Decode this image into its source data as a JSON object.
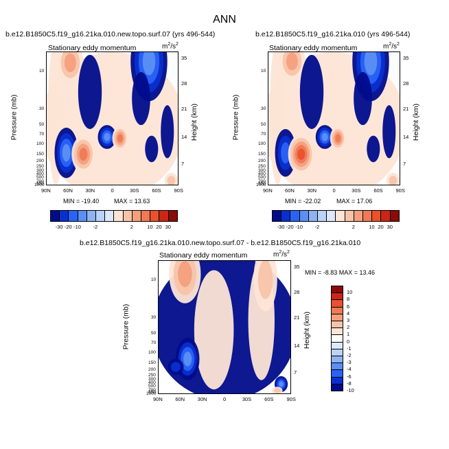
{
  "main_title": "ANN",
  "colors": {
    "negative": [
      "#000c8b",
      "#0a2fd0",
      "#2a62f5",
      "#5b8ff3",
      "#8fb3f2",
      "#bcd2f7",
      "#dde9fb"
    ],
    "positive": [
      "#fde5d6",
      "#f8c4a9",
      "#f4a07e",
      "#ef7a55",
      "#e8522d",
      "#cc2617",
      "#8b0a0a"
    ]
  },
  "colorbar_top": {
    "labels": [
      "-30",
      "-20",
      "-10",
      "-2",
      "2",
      "10",
      "20",
      "30"
    ]
  },
  "colorbar_diff": {
    "labels": [
      "10",
      "8",
      "6",
      "4",
      "3",
      "2",
      "1",
      "0",
      "-1",
      "-2",
      "-3",
      "-4",
      "-6",
      "-8",
      "-10"
    ]
  },
  "panels": {
    "left": {
      "title": "b.e12.B1850C5.f19_g16.21ka.010.new.topo.surf.07 (yrs 496-544)",
      "subtitle": "Stationary eddy momentum",
      "units_base": "m",
      "units_exp": "2",
      "units_den": "/s",
      "units_den_exp": "2",
      "ylabel": "Pressure (mb)",
      "rlabel": "Height (km)",
      "min_label": "MIN = -19.40",
      "max_label": "MAX = 13.63"
    },
    "right": {
      "title": "b.e12.B1850C5.f19_g16.21ka.010 (yrs 496-544)",
      "subtitle": "Stationary eddy momentum",
      "units_base": "m",
      "units_exp": "2",
      "units_den": "/s",
      "units_den_exp": "2",
      "ylabel": "Pressure (mb)",
      "rlabel": "Height (km)",
      "min_label": "MIN = -22.02",
      "max_label": "MAX = 17.06"
    },
    "diff": {
      "title": "b.e12.B1850C5.f19_g16.21ka.010.new.topo.surf.07 - b.e12.B1850C5.f19_g16.21ka.010",
      "subtitle": "Stationary eddy momentum",
      "units_base": "m",
      "units_exp": "2",
      "units_den": "/s",
      "units_den_exp": "2",
      "ylabel": "Pressure (mb)",
      "rlabel": "Height (km)",
      "minmax": "MIN = -8.83  MAX = 13.46"
    }
  },
  "chart_data": [
    {
      "type": "heatmap",
      "name": "left",
      "title": "b.e12.B1850C5.f19_g16.21ka.010.new.topo.surf.07 (yrs 496-544)",
      "subtitle": "Stationary eddy momentum",
      "xlabel": "",
      "ylabel": "Pressure (mb)",
      "y2label": "Height (km)",
      "x_ticks": [
        "90N",
        "60N",
        "30N",
        "0",
        "30S",
        "60S",
        "90S"
      ],
      "y_ticks": [
        "10",
        "30",
        "50",
        "70",
        "100",
        "150",
        "200",
        "250",
        "300",
        "400",
        "500",
        "700",
        "850",
        "1000"
      ],
      "y2_ticks": [
        "35",
        "28",
        "21",
        "14",
        "7"
      ],
      "contour_levels": [
        -30,
        -20,
        -10,
        -2,
        2,
        10,
        20,
        30
      ],
      "min": -19.4,
      "max": 13.63
    },
    {
      "type": "heatmap",
      "name": "right",
      "title": "b.e12.B1850C5.f19_g16.21ka.010 (yrs 496-544)",
      "subtitle": "Stationary eddy momentum",
      "xlabel": "",
      "ylabel": "Pressure (mb)",
      "y2label": "Height (km)",
      "x_ticks": [
        "90N",
        "60N",
        "30N",
        "0",
        "30S",
        "60S",
        "90S"
      ],
      "y_ticks": [
        "10",
        "30",
        "50",
        "70",
        "100",
        "150",
        "200",
        "250",
        "300",
        "400",
        "500",
        "700",
        "850",
        "1000"
      ],
      "y2_ticks": [
        "35",
        "28",
        "21",
        "14",
        "7"
      ],
      "contour_levels": [
        -30,
        -20,
        -10,
        -2,
        2,
        10,
        20,
        30
      ],
      "min": -22.02,
      "max": 17.06
    },
    {
      "type": "heatmap",
      "name": "diff",
      "title": "b.e12.B1850C5.f19_g16.21ka.010.new.topo.surf.07 - b.e12.B1850C5.f19_g16.21ka.010",
      "subtitle": "Stationary eddy momentum",
      "xlabel": "",
      "ylabel": "Pressure (mb)",
      "y2label": "Height (km)",
      "x_ticks": [
        "90N",
        "60N",
        "30N",
        "0",
        "30S",
        "60S",
        "90S"
      ],
      "y_ticks": [
        "10",
        "30",
        "50",
        "70",
        "100",
        "150",
        "200",
        "250",
        "300",
        "400",
        "500",
        "700",
        "850",
        "1000"
      ],
      "y2_ticks": [
        "35",
        "28",
        "21",
        "14",
        "7"
      ],
      "contour_levels": [
        -10,
        -8,
        -6,
        -4,
        -3,
        -2,
        -1,
        0,
        1,
        2,
        3,
        4,
        6,
        8,
        10
      ],
      "min": -8.83,
      "max": 13.46
    }
  ]
}
